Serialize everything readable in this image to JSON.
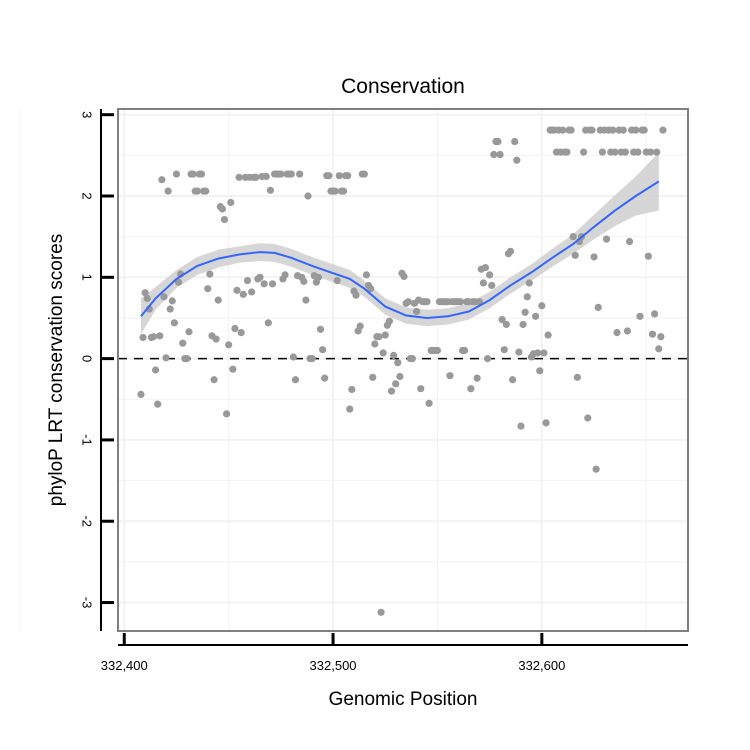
{
  "chart_data": {
    "type": "scatter",
    "title": "Conservation",
    "xlabel": "Genomic Position",
    "ylabel": "phyloP LRT conservation scores",
    "xlim": [
      332397,
      332670
    ],
    "ylim": [
      -3.35,
      3.07
    ],
    "x_ticks": [
      332400,
      332500,
      332600
    ],
    "x_tick_labels": [
      "332,400",
      "332,500",
      "332,600"
    ],
    "y_ticks": [
      -3,
      -2,
      -1,
      0,
      1,
      2,
      3
    ],
    "y_tick_labels": [
      "-3",
      "-2",
      "-1",
      "0",
      "1",
      "2",
      "3"
    ],
    "reference_line": {
      "y": 0,
      "style": "dashed"
    },
    "colors": {
      "points": "#999999",
      "smooth": "#3366ff",
      "band": "#cccccc",
      "frame": "#7f7f7f",
      "grid": "#f2f2f2"
    },
    "series": [
      {
        "name": "observed",
        "kind": "points",
        "points": [
          [
            332408,
            -0.44
          ],
          [
            332409,
            0.26
          ],
          [
            332410,
            0.81
          ],
          [
            332411,
            0.74
          ],
          [
            332412,
            0.61
          ],
          [
            332413,
            0.26
          ],
          [
            332414,
            0.27
          ],
          [
            332415,
            -0.14
          ],
          [
            332416,
            -0.56
          ],
          [
            332417,
            0.28
          ],
          [
            332418,
            2.2
          ],
          [
            332419,
            0.76
          ],
          [
            332420,
            0.01
          ],
          [
            332421,
            2.06
          ],
          [
            332422,
            0.61
          ],
          [
            332423,
            0.71
          ],
          [
            332424,
            0.44
          ],
          [
            332425,
            2.27
          ],
          [
            332426,
            0.94
          ],
          [
            332427,
            1.04
          ],
          [
            332428,
            0.19
          ],
          [
            332429,
            0.0
          ],
          [
            332430,
            0.0
          ],
          [
            332431,
            0.33
          ],
          [
            332432,
            2.27
          ],
          [
            332433,
            2.27
          ],
          [
            332434,
            2.06
          ],
          [
            332435,
            2.06
          ],
          [
            332436,
            2.27
          ],
          [
            332437,
            2.27
          ],
          [
            332438,
            2.06
          ],
          [
            332439,
            2.06
          ],
          [
            332440,
            0.86
          ],
          [
            332441,
            1.04
          ],
          [
            332442,
            0.28
          ],
          [
            332443,
            -0.26
          ],
          [
            332444,
            0.24
          ],
          [
            332445,
            0.72
          ],
          [
            332446,
            1.87
          ],
          [
            332447,
            1.84
          ],
          [
            332448,
            1.71
          ],
          [
            332449,
            -0.68
          ],
          [
            332450,
            0.17
          ],
          [
            332451,
            1.92
          ],
          [
            332452,
            -0.13
          ],
          [
            332453,
            0.37
          ],
          [
            332454,
            0.84
          ],
          [
            332455,
            2.23
          ],
          [
            332456,
            0.32
          ],
          [
            332457,
            0.79
          ],
          [
            332458,
            2.23
          ],
          [
            332459,
            0.96
          ],
          [
            332460,
            2.23
          ],
          [
            332461,
            0.82
          ],
          [
            332462,
            2.23
          ],
          [
            332463,
            2.23
          ],
          [
            332464,
            0.98
          ],
          [
            332465,
            1.0
          ],
          [
            332466,
            2.24
          ],
          [
            332467,
            0.92
          ],
          [
            332468,
            2.24
          ],
          [
            332469,
            0.44
          ],
          [
            332470,
            2.07
          ],
          [
            332471,
            0.92
          ],
          [
            332472,
            2.27
          ],
          [
            332473,
            2.27
          ],
          [
            332474,
            2.27
          ],
          [
            332475,
            2.27
          ],
          [
            332476,
            0.98
          ],
          [
            332477,
            1.03
          ],
          [
            332478,
            2.27
          ],
          [
            332479,
            2.27
          ],
          [
            332480,
            2.27
          ],
          [
            332481,
            0.02
          ],
          [
            332482,
            -0.26
          ],
          [
            332483,
            1.02
          ],
          [
            332484,
            2.27
          ],
          [
            332485,
            1.0
          ],
          [
            332486,
            0.95
          ],
          [
            332487,
            0.72
          ],
          [
            332488,
            2.0
          ],
          [
            332489,
            0.0
          ],
          [
            332490,
            0.0
          ],
          [
            332491,
            1.02
          ],
          [
            332492,
            0.94
          ],
          [
            332493,
            1.0
          ],
          [
            332494,
            0.36
          ],
          [
            332495,
            0.11
          ],
          [
            332496,
            -0.24
          ],
          [
            332497,
            2.25
          ],
          [
            332498,
            2.25
          ],
          [
            332499,
            2.06
          ],
          [
            332500,
            2.06
          ],
          [
            332501,
            2.06
          ],
          [
            332502,
            0.96
          ],
          [
            332503,
            2.25
          ],
          [
            332504,
            2.06
          ],
          [
            332505,
            2.06
          ],
          [
            332506,
            2.25
          ],
          [
            332507,
            2.25
          ],
          [
            332508,
            -0.62
          ],
          [
            332509,
            -0.38
          ],
          [
            332510,
            0.83
          ],
          [
            332511,
            0.78
          ],
          [
            332512,
            0.34
          ],
          [
            332513,
            0.4
          ],
          [
            332514,
            2.27
          ],
          [
            332515,
            2.27
          ],
          [
            332516,
            1.03
          ],
          [
            332517,
            0.9
          ],
          [
            332518,
            0.86
          ],
          [
            332519,
            -0.23
          ],
          [
            332520,
            0.18
          ],
          [
            332521,
            0.27
          ],
          [
            332522,
            0.27
          ],
          [
            332523,
            -3.12
          ],
          [
            332524,
            0.07
          ],
          [
            332525,
            0.29
          ],
          [
            332526,
            0.41
          ],
          [
            332527,
            0.46
          ],
          [
            332528,
            -0.4
          ],
          [
            332529,
            0.04
          ],
          [
            332530,
            -0.31
          ],
          [
            332531,
            -0.05
          ],
          [
            332532,
            -0.22
          ],
          [
            332533,
            1.05
          ],
          [
            332534,
            1.01
          ],
          [
            332535,
            0.68
          ],
          [
            332536,
            0.7
          ],
          [
            332537,
            0.0
          ],
          [
            332538,
            0.0
          ],
          [
            332539,
            0.68
          ],
          [
            332540,
            0.58
          ],
          [
            332541,
            0.72
          ],
          [
            332542,
            -0.37
          ],
          [
            332543,
            0.7
          ],
          [
            332544,
            0.7
          ],
          [
            332545,
            0.7
          ],
          [
            332546,
            -0.55
          ],
          [
            332547,
            0.1
          ],
          [
            332548,
            0.1
          ],
          [
            332549,
            0.1
          ],
          [
            332550,
            0.1
          ],
          [
            332551,
            0.7
          ],
          [
            332552,
            0.7
          ],
          [
            332553,
            0.7
          ],
          [
            332554,
            0.7
          ],
          [
            332555,
            0.7
          ],
          [
            332556,
            -0.21
          ],
          [
            332557,
            0.7
          ],
          [
            332558,
            0.7
          ],
          [
            332559,
            0.7
          ],
          [
            332560,
            0.7
          ],
          [
            332561,
            0.7
          ],
          [
            332562,
            0.1
          ],
          [
            332563,
            0.1
          ],
          [
            332564,
            0.7
          ],
          [
            332565,
            0.7
          ],
          [
            332566,
            -0.37
          ],
          [
            332567,
            0.7
          ],
          [
            332568,
            0.7
          ],
          [
            332569,
            -0.24
          ],
          [
            332570,
            0.7
          ],
          [
            332571,
            1.1
          ],
          [
            332572,
            0.93
          ],
          [
            332573,
            1.12
          ],
          [
            332574,
            0.0
          ],
          [
            332575,
            1.03
          ],
          [
            332576,
            0.9
          ],
          [
            332577,
            2.51
          ],
          [
            332578,
            2.67
          ],
          [
            332579,
            2.67
          ],
          [
            332580,
            2.51
          ],
          [
            332581,
            0.48
          ],
          [
            332582,
            0.11
          ],
          [
            332583,
            0.42
          ],
          [
            332584,
            1.29
          ],
          [
            332585,
            1.32
          ],
          [
            332586,
            -0.26
          ],
          [
            332587,
            2.67
          ],
          [
            332588,
            2.44
          ],
          [
            332589,
            0.08
          ],
          [
            332590,
            -0.83
          ],
          [
            332591,
            0.42
          ],
          [
            332592,
            0.57
          ],
          [
            332593,
            0.76
          ],
          [
            332594,
            0.93
          ],
          [
            332595,
            0.02
          ],
          [
            332596,
            0.06
          ],
          [
            332597,
            0.52
          ],
          [
            332598,
            0.07
          ],
          [
            332599,
            -0.15
          ],
          [
            332600,
            0.65
          ],
          [
            332601,
            0.07
          ],
          [
            332602,
            -0.79
          ],
          [
            332603,
            0.29
          ],
          [
            332604,
            2.81
          ],
          [
            332605,
            2.81
          ],
          [
            332606,
            2.81
          ],
          [
            332607,
            2.54
          ],
          [
            332608,
            2.81
          ],
          [
            332609,
            2.54
          ],
          [
            332610,
            2.81
          ],
          [
            332611,
            2.54
          ],
          [
            332612,
            2.54
          ],
          [
            332613,
            2.81
          ],
          [
            332614,
            2.81
          ],
          [
            332615,
            1.5
          ],
          [
            332616,
            1.27
          ],
          [
            332617,
            -0.23
          ],
          [
            332618,
            1.44
          ],
          [
            332619,
            1.5
          ],
          [
            332620,
            2.54
          ],
          [
            332621,
            2.81
          ],
          [
            332622,
            -0.73
          ],
          [
            332623,
            2.81
          ],
          [
            332624,
            2.81
          ],
          [
            332625,
            1.25
          ],
          [
            332626,
            -1.36
          ],
          [
            332627,
            0.63
          ],
          [
            332628,
            2.81
          ],
          [
            332629,
            2.54
          ],
          [
            332630,
            2.81
          ],
          [
            332631,
            1.47
          ],
          [
            332632,
            2.81
          ],
          [
            332633,
            2.54
          ],
          [
            332634,
            2.81
          ],
          [
            332635,
            2.54
          ],
          [
            332636,
            0.32
          ],
          [
            332637,
            2.81
          ],
          [
            332638,
            2.54
          ],
          [
            332639,
            2.81
          ],
          [
            332640,
            2.54
          ],
          [
            332641,
            0.34
          ],
          [
            332642,
            1.44
          ],
          [
            332643,
            2.81
          ],
          [
            332644,
            2.54
          ],
          [
            332645,
            2.81
          ],
          [
            332646,
            2.54
          ],
          [
            332647,
            0.52
          ],
          [
            332648,
            2.81
          ],
          [
            332649,
            2.81
          ],
          [
            332650,
            2.54
          ],
          [
            332651,
            1.26
          ],
          [
            332652,
            2.54
          ],
          [
            332653,
            0.3
          ],
          [
            332654,
            0.55
          ],
          [
            332655,
            2.54
          ],
          [
            332656,
            0.12
          ],
          [
            332657,
            0.27
          ],
          [
            332658,
            2.81
          ]
        ]
      },
      {
        "name": "smooth",
        "kind": "line",
        "points": [
          [
            332408,
            0.52
          ],
          [
            332415,
            0.74
          ],
          [
            332425,
            0.98
          ],
          [
            332435,
            1.14
          ],
          [
            332445,
            1.23
          ],
          [
            332455,
            1.28
          ],
          [
            332465,
            1.31
          ],
          [
            332472,
            1.3
          ],
          [
            332480,
            1.24
          ],
          [
            332490,
            1.14
          ],
          [
            332500,
            1.05
          ],
          [
            332508,
            0.98
          ],
          [
            332515,
            0.86
          ],
          [
            332525,
            0.64
          ],
          [
            332535,
            0.53
          ],
          [
            332545,
            0.5
          ],
          [
            332555,
            0.52
          ],
          [
            332565,
            0.58
          ],
          [
            332575,
            0.72
          ],
          [
            332585,
            0.9
          ],
          [
            332595,
            1.06
          ],
          [
            332605,
            1.24
          ],
          [
            332615,
            1.41
          ],
          [
            332625,
            1.62
          ],
          [
            332635,
            1.82
          ],
          [
            332645,
            2.0
          ],
          [
            332656,
            2.18
          ]
        ],
        "band_lower": [
          0.3,
          0.6,
          0.87,
          1.03,
          1.12,
          1.18,
          1.2,
          1.19,
          1.13,
          1.03,
          0.94,
          0.87,
          0.76,
          0.54,
          0.43,
          0.4,
          0.42,
          0.48,
          0.62,
          0.8,
          0.96,
          1.13,
          1.29,
          1.47,
          1.63,
          1.76,
          1.82
        ],
        "band_upper": [
          0.74,
          0.88,
          1.09,
          1.25,
          1.34,
          1.38,
          1.42,
          1.41,
          1.35,
          1.25,
          1.16,
          1.09,
          0.96,
          0.74,
          0.63,
          0.6,
          0.62,
          0.68,
          0.82,
          1.0,
          1.16,
          1.35,
          1.53,
          1.77,
          2.01,
          2.24,
          2.54
        ]
      }
    ]
  }
}
